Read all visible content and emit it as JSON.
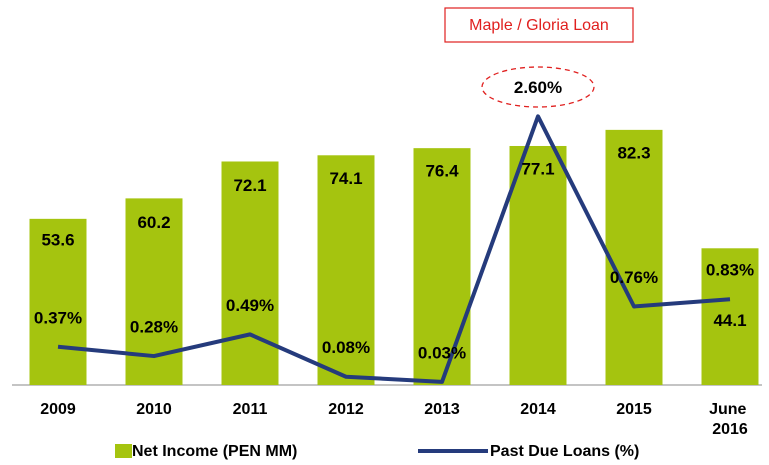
{
  "chart_data": {
    "type": "bar",
    "categories": [
      "2009",
      "2010",
      "2011",
      "2012",
      "2013",
      "2014",
      "2015",
      "June 2016"
    ],
    "series": [
      {
        "name": "Net Income (PEN MM)",
        "type": "bar",
        "color": "#a5c40f",
        "values": [
          53.6,
          60.2,
          72.1,
          74.1,
          76.4,
          77.1,
          82.3,
          44.1
        ]
      },
      {
        "name": "Past Due Loans (%)",
        "type": "line",
        "axis": "y2",
        "color": "#253b7c",
        "values": [
          0.37,
          0.28,
          0.49,
          0.08,
          0.03,
          2.6,
          0.76,
          0.83
        ],
        "value_labels": [
          "0.37%",
          "0.28%",
          "0.49%",
          "0.08%",
          "0.03%",
          "2.60%",
          "0.76%",
          "0.83%"
        ]
      }
    ],
    "ylim": [
      0,
      120
    ],
    "y2lim": [
      0,
      3.6
    ],
    "annotation": "Maple / Gloria Loan",
    "legend": "bottom"
  }
}
